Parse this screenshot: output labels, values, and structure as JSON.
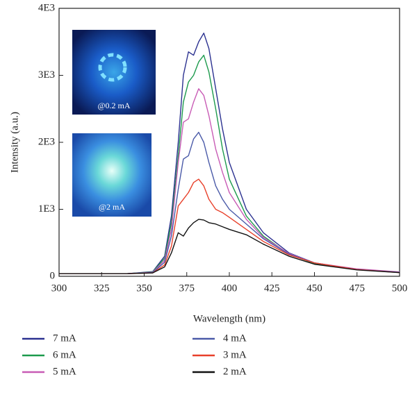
{
  "chart_data": {
    "type": "line",
    "xlabel": "Wavelength (nm)",
    "ylabel": "Intensity (a.u.)",
    "x": [
      300,
      340,
      355,
      362,
      366,
      370,
      373,
      376,
      379,
      382,
      385,
      388,
      392,
      396,
      400,
      410,
      420,
      435,
      450,
      475,
      500
    ],
    "series": [
      {
        "name": "7 mA",
        "color": "#2b3190",
        "values": [
          40,
          40,
          70,
          300,
          900,
          2000,
          3000,
          3350,
          3300,
          3500,
          3630,
          3400,
          2800,
          2200,
          1700,
          1000,
          650,
          350,
          200,
          100,
          60
        ]
      },
      {
        "name": "6 mA",
        "color": "#1c9a4c",
        "values": [
          40,
          40,
          65,
          270,
          800,
          1800,
          2600,
          2900,
          3000,
          3200,
          3300,
          3050,
          2500,
          1900,
          1450,
          900,
          600,
          330,
          190,
          100,
          60
        ]
      },
      {
        "name": "5 mA",
        "color": "#c85bb5",
        "values": [
          40,
          40,
          60,
          240,
          700,
          1700,
          2300,
          2350,
          2600,
          2800,
          2700,
          2400,
          1900,
          1550,
          1250,
          850,
          580,
          340,
          200,
          110,
          65
        ]
      },
      {
        "name": "4 mA",
        "color": "#4a5aa8",
        "values": [
          40,
          40,
          55,
          210,
          600,
          1300,
          1750,
          1800,
          2050,
          2150,
          2000,
          1700,
          1350,
          1150,
          1000,
          780,
          560,
          330,
          200,
          100,
          60
        ]
      },
      {
        "name": "3 mA",
        "color": "#e8402a",
        "values": [
          40,
          40,
          50,
          170,
          450,
          1050,
          1150,
          1250,
          1400,
          1450,
          1350,
          1150,
          1000,
          950,
          880,
          700,
          520,
          320,
          200,
          100,
          55
        ]
      },
      {
        "name": "2 mA",
        "color": "#111111",
        "values": [
          40,
          40,
          50,
          140,
          350,
          650,
          600,
          720,
          800,
          850,
          840,
          800,
          780,
          740,
          700,
          620,
          480,
          300,
          180,
          95,
          55
        ]
      }
    ],
    "xlim": [
      300,
      500
    ],
    "xticks": [
      300,
      325,
      350,
      375,
      400,
      425,
      450,
      475,
      500
    ],
    "ylim": [
      0,
      4000
    ],
    "yticks": [
      0,
      {
        "value": 1000,
        "label": "1E3"
      },
      {
        "value": 2000,
        "label": "2E3"
      },
      {
        "value": 3000,
        "label": "3E3"
      },
      {
        "value": 4000,
        "label": "4E3"
      }
    ],
    "grid": false,
    "legend": "bottom",
    "annotations": [
      "@0.2 mA",
      "@2 mA"
    ]
  }
}
